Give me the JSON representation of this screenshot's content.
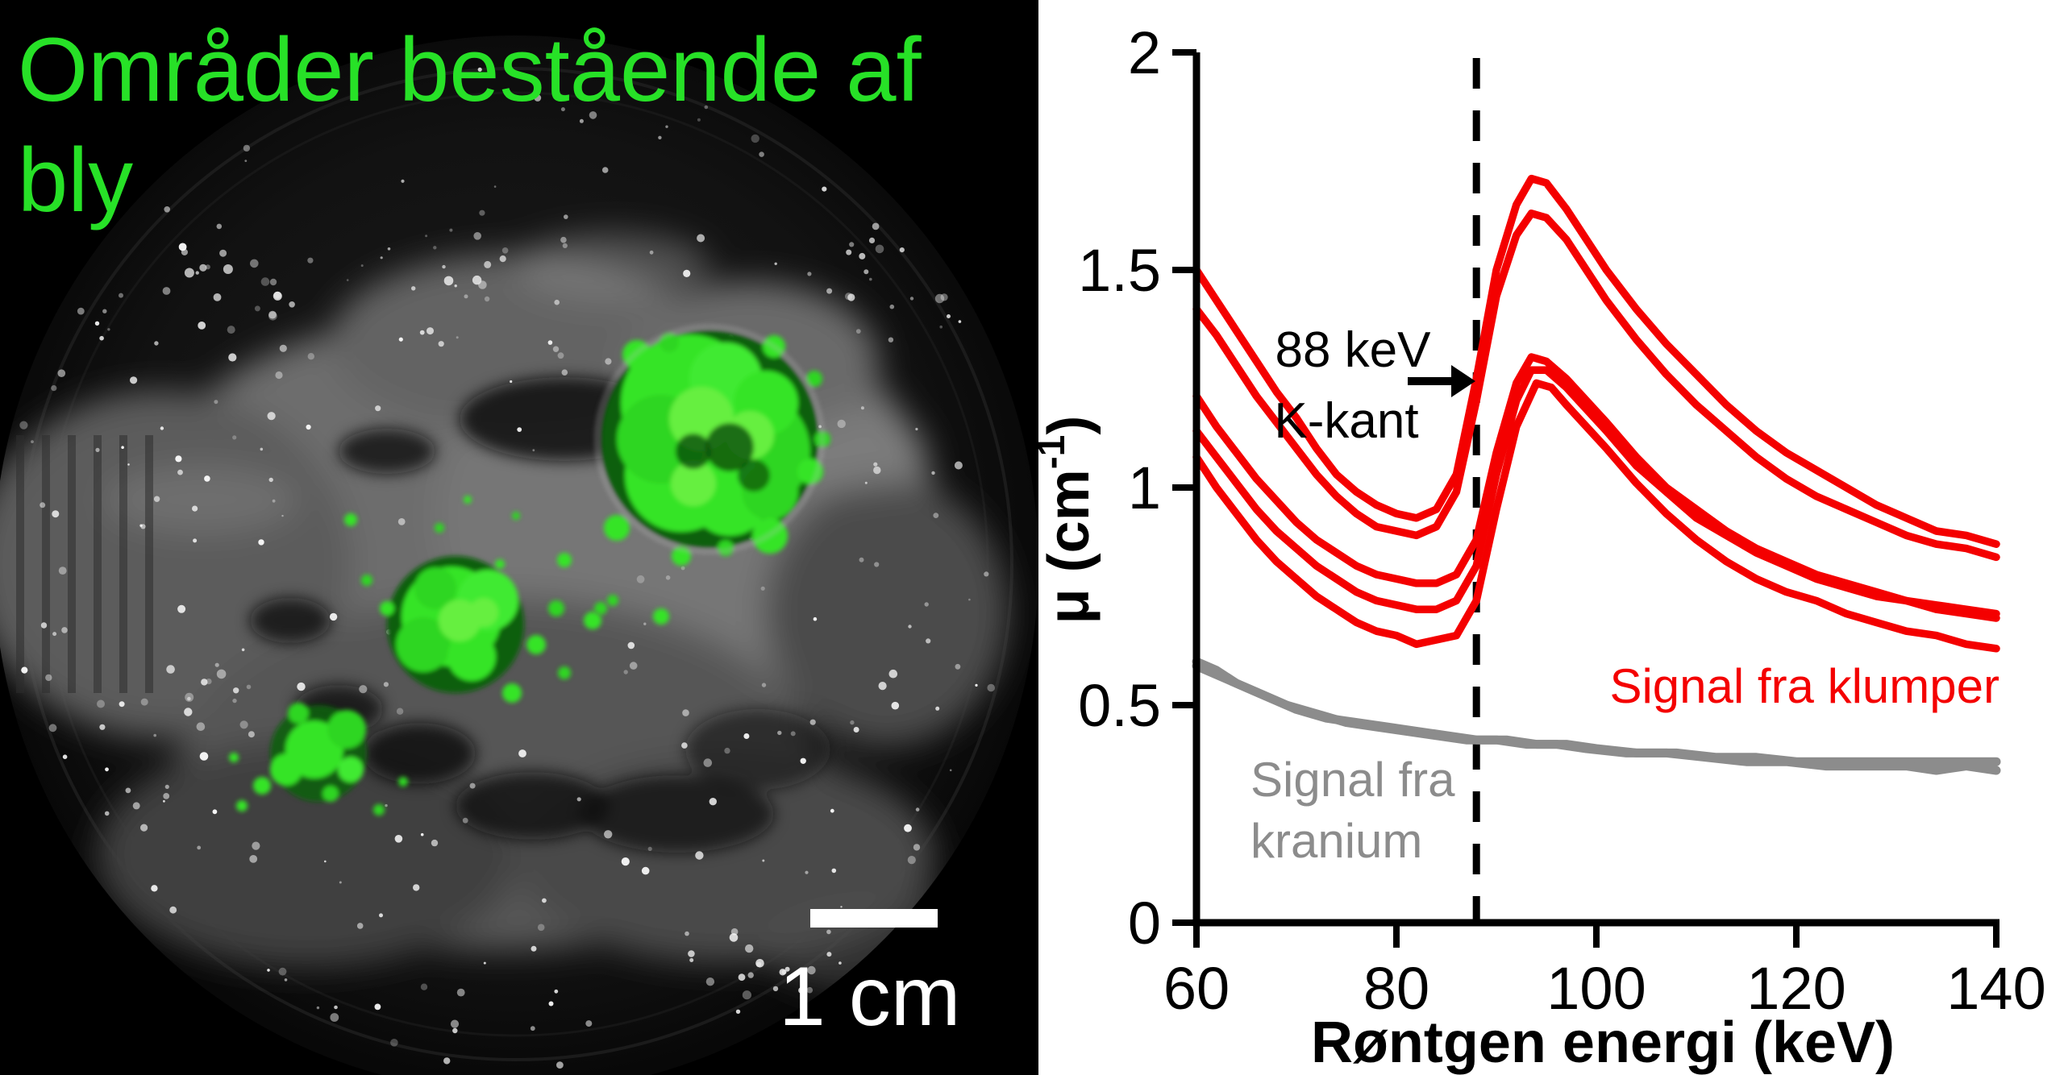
{
  "left_panel": {
    "title_line1": "Områder bestående af",
    "title_line2": "bly",
    "title_color": "#27e127",
    "scalebar_label": "1 cm",
    "description": "3D mikro-CT rekonstruktion af kranium med grønne blyområder"
  },
  "chart_data": {
    "type": "line",
    "xlabel": "Røntgen energi (keV)",
    "ylabel": "μ (cm⁻¹)",
    "ylabel_parts": {
      "base": "μ (cm",
      "sup": "-1",
      "close": ")"
    },
    "xlim": [
      60,
      140
    ],
    "ylim": [
      0,
      2
    ],
    "x_ticks": [
      60,
      80,
      100,
      120,
      140
    ],
    "y_ticks": [
      0,
      0.5,
      1,
      1.5,
      2
    ],
    "y_tick_labels": [
      "0",
      "0.5",
      "1",
      "1.5",
      "2"
    ],
    "grid": false,
    "k_edge_keV": 88,
    "colors": {
      "red": "#f40000",
      "gray": "#8c8c8c",
      "axis": "#000000"
    },
    "annotations": {
      "k_edge_line1": "88 keV",
      "k_edge_line2": "K-kant",
      "red_series_label": "Signal fra klumper",
      "gray_series_label_line1": "Signal fra",
      "gray_series_label_line2": "kranium"
    },
    "series": [
      {
        "name": "klump-1",
        "group": "Signal fra klumper",
        "color": "#f40000",
        "width": 9.5,
        "points": [
          [
            60,
            1.5
          ],
          [
            62,
            1.43
          ],
          [
            64,
            1.36
          ],
          [
            66,
            1.29
          ],
          [
            68,
            1.22
          ],
          [
            70,
            1.16
          ],
          [
            72,
            1.09
          ],
          [
            74,
            1.03
          ],
          [
            76,
            0.99
          ],
          [
            78,
            0.96
          ],
          [
            80,
            0.94
          ],
          [
            82,
            0.93
          ],
          [
            84,
            0.95
          ],
          [
            86,
            1.03
          ],
          [
            88,
            1.25
          ],
          [
            90,
            1.5
          ],
          [
            92,
            1.65
          ],
          [
            93.5,
            1.71
          ],
          [
            95,
            1.7
          ],
          [
            97,
            1.64
          ],
          [
            99,
            1.57
          ],
          [
            101,
            1.5
          ],
          [
            104,
            1.41
          ],
          [
            107,
            1.33
          ],
          [
            110,
            1.26
          ],
          [
            113,
            1.19
          ],
          [
            116,
            1.13
          ],
          [
            119,
            1.08
          ],
          [
            122,
            1.04
          ],
          [
            125,
            1.0
          ],
          [
            128,
            0.96
          ],
          [
            131,
            0.93
          ],
          [
            134,
            0.9
          ],
          [
            137,
            0.89
          ],
          [
            140,
            0.87
          ]
        ]
      },
      {
        "name": "klump-2",
        "group": "Signal fra klumper",
        "color": "#f40000",
        "width": 9.5,
        "points": [
          [
            60,
            1.41
          ],
          [
            62,
            1.35
          ],
          [
            64,
            1.28
          ],
          [
            66,
            1.21
          ],
          [
            68,
            1.15
          ],
          [
            70,
            1.09
          ],
          [
            72,
            1.03
          ],
          [
            74,
            0.98
          ],
          [
            76,
            0.94
          ],
          [
            78,
            0.91
          ],
          [
            80,
            0.9
          ],
          [
            82,
            0.89
          ],
          [
            84,
            0.91
          ],
          [
            86,
            0.99
          ],
          [
            88,
            1.2
          ],
          [
            90,
            1.44
          ],
          [
            92,
            1.58
          ],
          [
            93.5,
            1.63
          ],
          [
            95,
            1.62
          ],
          [
            97,
            1.57
          ],
          [
            99,
            1.5
          ],
          [
            101,
            1.43
          ],
          [
            104,
            1.34
          ],
          [
            107,
            1.26
          ],
          [
            110,
            1.19
          ],
          [
            113,
            1.13
          ],
          [
            116,
            1.07
          ],
          [
            119,
            1.02
          ],
          [
            122,
            0.98
          ],
          [
            125,
            0.95
          ],
          [
            128,
            0.92
          ],
          [
            131,
            0.89
          ],
          [
            134,
            0.87
          ],
          [
            137,
            0.86
          ],
          [
            140,
            0.84
          ]
        ]
      },
      {
        "name": "klump-3",
        "group": "Signal fra klumper",
        "color": "#f40000",
        "width": 9.5,
        "points": [
          [
            60,
            1.21
          ],
          [
            62,
            1.14
          ],
          [
            64,
            1.08
          ],
          [
            66,
            1.02
          ],
          [
            68,
            0.97
          ],
          [
            70,
            0.92
          ],
          [
            72,
            0.88
          ],
          [
            74,
            0.85
          ],
          [
            76,
            0.82
          ],
          [
            78,
            0.8
          ],
          [
            80,
            0.79
          ],
          [
            82,
            0.78
          ],
          [
            84,
            0.78
          ],
          [
            86,
            0.8
          ],
          [
            88,
            0.88
          ],
          [
            90,
            1.08
          ],
          [
            92,
            1.24
          ],
          [
            93.5,
            1.3
          ],
          [
            95,
            1.29
          ],
          [
            97,
            1.25
          ],
          [
            99,
            1.2
          ],
          [
            101,
            1.15
          ],
          [
            104,
            1.07
          ],
          [
            107,
            1.0
          ],
          [
            110,
            0.95
          ],
          [
            113,
            0.9
          ],
          [
            116,
            0.86
          ],
          [
            119,
            0.83
          ],
          [
            122,
            0.8
          ],
          [
            125,
            0.78
          ],
          [
            128,
            0.76
          ],
          [
            131,
            0.74
          ],
          [
            134,
            0.73
          ],
          [
            137,
            0.72
          ],
          [
            140,
            0.71
          ]
        ]
      },
      {
        "name": "klump-4",
        "group": "Signal fra klumper",
        "color": "#f40000",
        "width": 9.5,
        "points": [
          [
            60,
            1.13
          ],
          [
            62,
            1.07
          ],
          [
            64,
            1.01
          ],
          [
            66,
            0.95
          ],
          [
            68,
            0.9
          ],
          [
            70,
            0.86
          ],
          [
            72,
            0.82
          ],
          [
            74,
            0.79
          ],
          [
            76,
            0.76
          ],
          [
            78,
            0.74
          ],
          [
            80,
            0.73
          ],
          [
            82,
            0.72
          ],
          [
            84,
            0.72
          ],
          [
            86,
            0.74
          ],
          [
            88,
            0.82
          ],
          [
            90,
            1.03
          ],
          [
            92,
            1.2
          ],
          [
            93.5,
            1.27
          ],
          [
            95,
            1.27
          ],
          [
            97,
            1.23
          ],
          [
            99,
            1.18
          ],
          [
            101,
            1.13
          ],
          [
            104,
            1.05
          ],
          [
            107,
            0.99
          ],
          [
            110,
            0.93
          ],
          [
            113,
            0.89
          ],
          [
            116,
            0.85
          ],
          [
            119,
            0.82
          ],
          [
            122,
            0.79
          ],
          [
            125,
            0.77
          ],
          [
            128,
            0.75
          ],
          [
            131,
            0.74
          ],
          [
            134,
            0.72
          ],
          [
            137,
            0.71
          ],
          [
            140,
            0.7
          ]
        ]
      },
      {
        "name": "klump-5",
        "group": "Signal fra klumper",
        "color": "#f40000",
        "width": 9.5,
        "points": [
          [
            60,
            1.07
          ],
          [
            62,
            1.0
          ],
          [
            64,
            0.94
          ],
          [
            66,
            0.88
          ],
          [
            68,
            0.83
          ],
          [
            70,
            0.79
          ],
          [
            72,
            0.75
          ],
          [
            74,
            0.72
          ],
          [
            76,
            0.69
          ],
          [
            78,
            0.67
          ],
          [
            80,
            0.66
          ],
          [
            82,
            0.64
          ],
          [
            84,
            0.65
          ],
          [
            86,
            0.66
          ],
          [
            88,
            0.74
          ],
          [
            90,
            0.95
          ],
          [
            92,
            1.14
          ],
          [
            94,
            1.24
          ],
          [
            95.5,
            1.23
          ],
          [
            97,
            1.19
          ],
          [
            99,
            1.14
          ],
          [
            101,
            1.09
          ],
          [
            104,
            1.01
          ],
          [
            107,
            0.94
          ],
          [
            110,
            0.88
          ],
          [
            113,
            0.83
          ],
          [
            116,
            0.79
          ],
          [
            119,
            0.76
          ],
          [
            122,
            0.74
          ],
          [
            125,
            0.71
          ],
          [
            128,
            0.69
          ],
          [
            131,
            0.67
          ],
          [
            134,
            0.66
          ],
          [
            137,
            0.64
          ],
          [
            140,
            0.63
          ]
        ]
      },
      {
        "name": "kranium-1",
        "group": "Signal fra kranium",
        "color": "#8c8c8c",
        "width": 11,
        "points": [
          [
            60,
            0.6
          ],
          [
            62,
            0.58
          ],
          [
            64,
            0.55
          ],
          [
            66,
            0.53
          ],
          [
            68,
            0.51
          ],
          [
            70,
            0.49
          ],
          [
            73,
            0.47
          ],
          [
            76,
            0.46
          ],
          [
            79,
            0.45
          ],
          [
            82,
            0.44
          ],
          [
            85,
            0.43
          ],
          [
            88,
            0.42
          ],
          [
            91,
            0.42
          ],
          [
            94,
            0.41
          ],
          [
            97,
            0.41
          ],
          [
            100,
            0.4
          ],
          [
            104,
            0.39
          ],
          [
            108,
            0.39
          ],
          [
            112,
            0.38
          ],
          [
            116,
            0.38
          ],
          [
            120,
            0.37
          ],
          [
            124,
            0.37
          ],
          [
            128,
            0.37
          ],
          [
            132,
            0.37
          ],
          [
            136,
            0.37
          ],
          [
            140,
            0.37
          ]
        ]
      },
      {
        "name": "kranium-2",
        "group": "Signal fra kranium",
        "color": "#8c8c8c",
        "width": 11,
        "points": [
          [
            60,
            0.59
          ],
          [
            63,
            0.56
          ],
          [
            66,
            0.53
          ],
          [
            69,
            0.5
          ],
          [
            72,
            0.48
          ],
          [
            75,
            0.46
          ],
          [
            78,
            0.45
          ],
          [
            81,
            0.44
          ],
          [
            84,
            0.43
          ],
          [
            87,
            0.42
          ],
          [
            90,
            0.42
          ],
          [
            93,
            0.41
          ],
          [
            96,
            0.41
          ],
          [
            99,
            0.4
          ],
          [
            103,
            0.39
          ],
          [
            107,
            0.39
          ],
          [
            111,
            0.38
          ],
          [
            115,
            0.37
          ],
          [
            119,
            0.37
          ],
          [
            123,
            0.36
          ],
          [
            127,
            0.36
          ],
          [
            131,
            0.36
          ],
          [
            134,
            0.35
          ],
          [
            137,
            0.36
          ],
          [
            140,
            0.35
          ]
        ]
      }
    ]
  }
}
